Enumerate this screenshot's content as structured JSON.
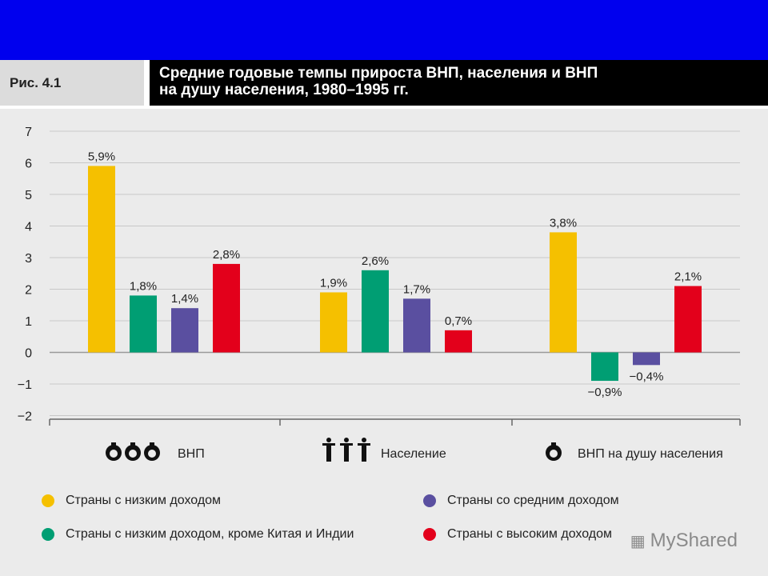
{
  "header": {
    "figure_label": "Рис. 4.1",
    "title_line1": "Средние годовые темпы прироста ВНП, населения и ВНП",
    "title_line2": "на душу населения, 1980–1995 гг."
  },
  "colors": {
    "top_bar": "#0000ee",
    "low_income": "#f5c000",
    "low_income_excl": "#009e73",
    "middle_income": "#5a4fa0",
    "high_income": "#e3001b"
  },
  "chart_data": {
    "type": "bar",
    "categories": [
      "ВНП",
      "Население",
      "ВНП на душу населения"
    ],
    "category_icons": [
      "coins-icon",
      "people-icon",
      "coin-icon"
    ],
    "series": [
      {
        "name": "Страны с низким доходом",
        "values": [
          5.9,
          1.9,
          3.8
        ],
        "labels": [
          "5,9%",
          "1,9%",
          "3,8%"
        ],
        "color": "#f5c000"
      },
      {
        "name": "Страны с низким доходом, кроме Китая и Индии",
        "values": [
          1.8,
          2.6,
          -0.9
        ],
        "labels": [
          "1,8%",
          "2,6%",
          "−0,9%"
        ],
        "color": "#009e73"
      },
      {
        "name": "Страны со средним доходом",
        "values": [
          1.4,
          1.7,
          -0.4
        ],
        "labels": [
          "1,4%",
          "1,7%",
          "−0,4%"
        ],
        "color": "#5a4fa0"
      },
      {
        "name": "Страны с высоким доходом",
        "values": [
          2.8,
          0.7,
          2.1
        ],
        "labels": [
          "2,8%",
          "0,7%",
          "2,1%"
        ],
        "color": "#e3001b"
      }
    ],
    "y_ticks": [
      "7",
      "6",
      "5",
      "4",
      "3",
      "2",
      "1",
      "0",
      "−1",
      "−2"
    ],
    "ylim": [
      -2,
      7
    ],
    "grid": true,
    "legend_position": "bottom"
  },
  "legend": [
    {
      "label": "Страны с низким доходом",
      "color": "#f5c000"
    },
    {
      "label": "Страны со средним доходом",
      "color": "#5a4fa0"
    },
    {
      "label": "Страны с низким доходом, кроме Китая и Индии",
      "color": "#009e73"
    },
    {
      "label": "Страны с высоким доходом",
      "color": "#e3001b"
    }
  ],
  "watermark": {
    "text": "MyShared",
    "icon": "projector-icon"
  }
}
